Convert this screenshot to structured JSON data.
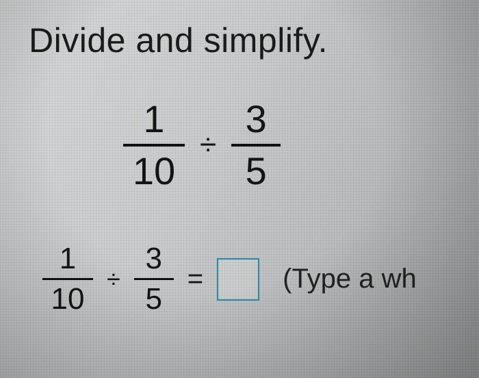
{
  "instruction": "Divide and simplify.",
  "problem": {
    "fraction1": {
      "numerator": "1",
      "denominator": "10"
    },
    "operator": "÷",
    "fraction2": {
      "numerator": "3",
      "denominator": "5"
    }
  },
  "answer_line": {
    "fraction1": {
      "numerator": "1",
      "denominator": "10"
    },
    "operator": "÷",
    "fraction2": {
      "numerator": "3",
      "denominator": "5"
    },
    "equals": "=",
    "input_value": "",
    "hint": "(Type a wh"
  },
  "style": {
    "text_color": "#141414",
    "input_border_color": "#2a8aa8",
    "background_color": "#c8cacb"
  }
}
